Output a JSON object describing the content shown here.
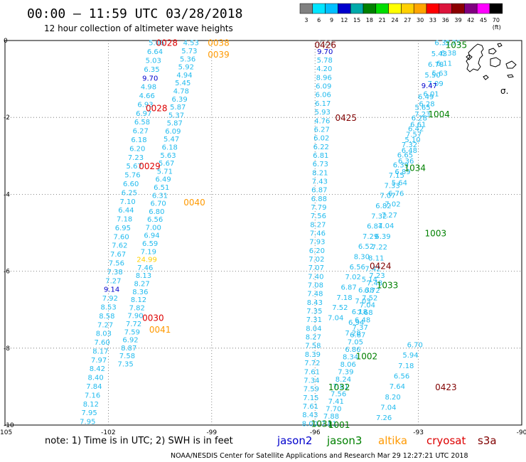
{
  "header": {
    "title": "00:00 – 11:59 UTC 03/28/2018",
    "subtitle": "12 hour collection of altimeter wave heights"
  },
  "colorbar": {
    "ticks": [
      "3",
      "6",
      "9",
      "12",
      "15",
      "18",
      "21",
      "24",
      "27",
      "30",
      "33",
      "36",
      "39",
      "42",
      "45",
      "70"
    ],
    "unit": "(ft)",
    "colors": [
      "#808080",
      "#00e5ff",
      "#00bfff",
      "#0000cd",
      "#00aaaa",
      "#008000",
      "#00dd00",
      "#ffff00",
      "#ffd000",
      "#ffa500",
      "#ff0000",
      "#dc143c",
      "#8b0000",
      "#800080",
      "#ff00ff",
      "#000000"
    ]
  },
  "footer": {
    "note": "note:  1) Time is in UTC; 2) SWH is in feet",
    "satellites": [
      {
        "name": "jason2",
        "color": "#0000cc"
      },
      {
        "name": "jason3",
        "color": "#008000"
      },
      {
        "name": "altika",
        "color": "#ff9900"
      },
      {
        "name": "cryosat",
        "color": "#dd0000"
      },
      {
        "name": "s3a",
        "color": "#800000"
      }
    ],
    "credit": "NOAA/NESDIS Center for Satellite Applications and Research    Mar 29 12:27:21 UTC 2018"
  },
  "chart_data": {
    "type": "scatter",
    "xlim": [
      -105,
      -90
    ],
    "ylim": [
      -10,
      0
    ],
    "xticks": [
      "-105",
      "-102",
      "-99",
      "-96",
      "-93",
      "-90"
    ],
    "yticks": [
      "0",
      "-2",
      "-4",
      "-6",
      "-8",
      "-10"
    ],
    "grid": true,
    "pass_labels": [
      {
        "text": "0028",
        "lon": -100.3,
        "lat": -0.05,
        "color": "#dd0000"
      },
      {
        "text": "0038",
        "lon": -98.8,
        "lat": -0.05,
        "color": "#ff9900"
      },
      {
        "text": "0039",
        "lon": -98.8,
        "lat": -0.35,
        "color": "#ff9900"
      },
      {
        "text": "0028",
        "lon": -100.6,
        "lat": -1.75,
        "color": "#dd0000"
      },
      {
        "text": "0029",
        "lon": -100.8,
        "lat": -3.25,
        "color": "#dd0000"
      },
      {
        "text": "0040",
        "lon": -99.5,
        "lat": -4.2,
        "color": "#ff9900"
      },
      {
        "text": "0030",
        "lon": -100.7,
        "lat": -7.2,
        "color": "#dd0000"
      },
      {
        "text": "0041",
        "lon": -100.5,
        "lat": -7.5,
        "color": "#ff9900"
      },
      {
        "text": "0426",
        "lon": -95.7,
        "lat": -0.1,
        "color": "#800000"
      },
      {
        "text": "0425",
        "lon": -95.1,
        "lat": -2.0,
        "color": "#800000"
      },
      {
        "text": "0424",
        "lon": -94.1,
        "lat": -5.85,
        "color": "#800000"
      },
      {
        "text": "0423",
        "lon": -92.2,
        "lat": -9.0,
        "color": "#800000"
      },
      {
        "text": "1035",
        "lon": -91.9,
        "lat": -0.1,
        "color": "#008000"
      },
      {
        "text": "1004",
        "lon": -92.4,
        "lat": -1.9,
        "color": "#008000"
      },
      {
        "text": "1034",
        "lon": -93.1,
        "lat": -3.3,
        "color": "#008000"
      },
      {
        "text": "1003",
        "lon": -92.5,
        "lat": -5.0,
        "color": "#008000"
      },
      {
        "text": "1033",
        "lon": -93.9,
        "lat": -6.35,
        "color": "#008000"
      },
      {
        "text": "1002",
        "lon": -94.5,
        "lat": -8.2,
        "color": "#008000"
      },
      {
        "text": "1032",
        "lon": -95.3,
        "lat": -9.0,
        "color": "#008000"
      },
      {
        "text": "1031",
        "lon": -95.8,
        "lat": -9.95,
        "color": "#008000"
      },
      {
        "text": "1001",
        "lon": -95.3,
        "lat": -9.98,
        "color": "#008000"
      }
    ],
    "tracks": [
      {
        "satellite": "altika",
        "lon_start": -100.6,
        "lon_end": -102.6,
        "lat_start": -0.05,
        "lat_end": -9.9,
        "values": [
          "5.06",
          "6.64",
          "5.03",
          "6.35",
          "9.70",
          "4.98",
          "4.66",
          "6.93",
          "6.97",
          "6.58",
          "6.27",
          "6.18",
          "6.20",
          "7.23",
          "5.67",
          "5.76",
          "6.60",
          "6.25",
          "7.10",
          "6.44",
          "7.18",
          "6.95",
          "7.60",
          "7.62",
          "7.67",
          "7.56",
          "7.38",
          "7.27",
          "9.14",
          "7.92",
          "8.53",
          "8.58",
          "7.27",
          "8.03",
          "7.60",
          "8.17",
          "7.97",
          "8.42",
          "8.40",
          "7.84",
          "7.16",
          "8.12",
          "7.95",
          "7.95"
        ],
        "colors": {
          "9.70": "#0000cd",
          "9.14": "#0000cd"
        }
      },
      {
        "satellite": "altika",
        "lon_start": -99.6,
        "lon_end": -101.5,
        "lat_start": -0.05,
        "lat_end": -8.4,
        "values": [
          "4.53",
          "5.73",
          "5.36",
          "5.92",
          "4.94",
          "5.45",
          "4.78",
          "6.39",
          "5.87",
          "5.37",
          "5.87",
          "6.09",
          "5.47",
          "6.18",
          "5.63",
          "5.67",
          "5.71",
          "6.49",
          "6.51",
          "6.31",
          "6.70",
          "6.80",
          "6.56",
          "7.00",
          "6.94",
          "6.59",
          "7.19",
          "24.99",
          "7.46",
          "8.13",
          "8.27",
          "8.36",
          "8.12",
          "7.82",
          "7.90",
          "7.72",
          "7.59",
          "6.92",
          "8.87",
          "7.58",
          "7.35"
        ],
        "colors": {
          "24.99": "#ffd000"
        }
      },
      {
        "satellite": "cryosat",
        "lon_start": -95.7,
        "lon_end": -96.15,
        "lat_start": -0.05,
        "lat_end": -9.95,
        "values": [
          "2.22",
          "9.70",
          "5.78",
          "4.20",
          "8.96",
          "6.09",
          "6.06",
          "6.17",
          "5.93",
          "4.76",
          "6.27",
          "6.02",
          "6.22",
          "6.81",
          "6.73",
          "8.21",
          "7.43",
          "6.87",
          "6.88",
          "7.79",
          "7.56",
          "8.27",
          "7.46",
          "7.93",
          "6.20",
          "7.02",
          "7.07",
          "7.40",
          "7.08",
          "7.48",
          "8.43",
          "7.35",
          "7.31",
          "8.04",
          "8.27",
          "7.58",
          "8.39",
          "7.72",
          "7.61",
          "7.34",
          "7.59",
          "7.15",
          "7.61",
          "8.43",
          "8.00"
        ],
        "colors": {
          "2.22": "#808080",
          "9.70": "#0000cd"
        }
      },
      {
        "satellite": "cryosat",
        "lon_start": -94.2,
        "lon_end": -95.6,
        "lat_start": -6.1,
        "lat_end": -9.95,
        "values": [
          "7.23",
          "7.48",
          "6.72",
          "7.52",
          "7.04",
          "7.68",
          "6.48",
          "7.37",
          "6.87",
          "7.05",
          "6.86",
          "8.34",
          "8.06",
          "7.39",
          "8.24",
          "7.81",
          "7.56",
          "7.41",
          "7.70",
          "7.88",
          "7.81"
        ]
      },
      {
        "satellite": "jason3",
        "lon_start": -92.0,
        "lon_end": -95.4,
        "lat_start": -0.05,
        "lat_end": -7.2,
        "values": [
          "5.75",
          "6.38",
          "6.11",
          "5.63",
          "7.09",
          "6.01",
          "6.28",
          "7.23",
          "6.61",
          "7.57",
          "7.32",
          "6.65",
          "6.39",
          "7.15",
          "7.33",
          "7.07",
          "6.82",
          "7.32",
          "6.84",
          "7.29",
          "6.52",
          "8.30",
          "6.56",
          "7.02",
          "6.87",
          "7.18",
          "7.52",
          "7.04"
        ]
      },
      {
        "satellite": "jason3",
        "lon_start": -92.3,
        "lon_end": -94.9,
        "lat_start": -0.05,
        "lat_end": -7.6,
        "values": [
          "6.32",
          "5.43",
          "6.78",
          "5.50",
          "9.47",
          "6.49",
          "5.65",
          "6.28",
          "6.42",
          "5.10",
          "6.48",
          "6.36",
          "6.89",
          "5.64",
          "6.76",
          "7.02",
          "7.27",
          "7.04",
          "6.39",
          "7.22",
          "8.11",
          "7.42",
          "5.14",
          "6.38",
          "7.03",
          "6.18",
          "6.94",
          "7.28"
        ],
        "colors": {
          "9.47": "#0000cd"
        }
      },
      {
        "satellite": "jason3",
        "lon_start": -93.1,
        "lon_end": -94.0,
        "lat_start": -7.9,
        "lat_end": -9.8,
        "values": [
          "6.70",
          "5.94",
          "7.18",
          "6.56",
          "7.64",
          "8.20",
          "7.04",
          "7.26"
        ]
      }
    ],
    "island_label": "σ."
  }
}
